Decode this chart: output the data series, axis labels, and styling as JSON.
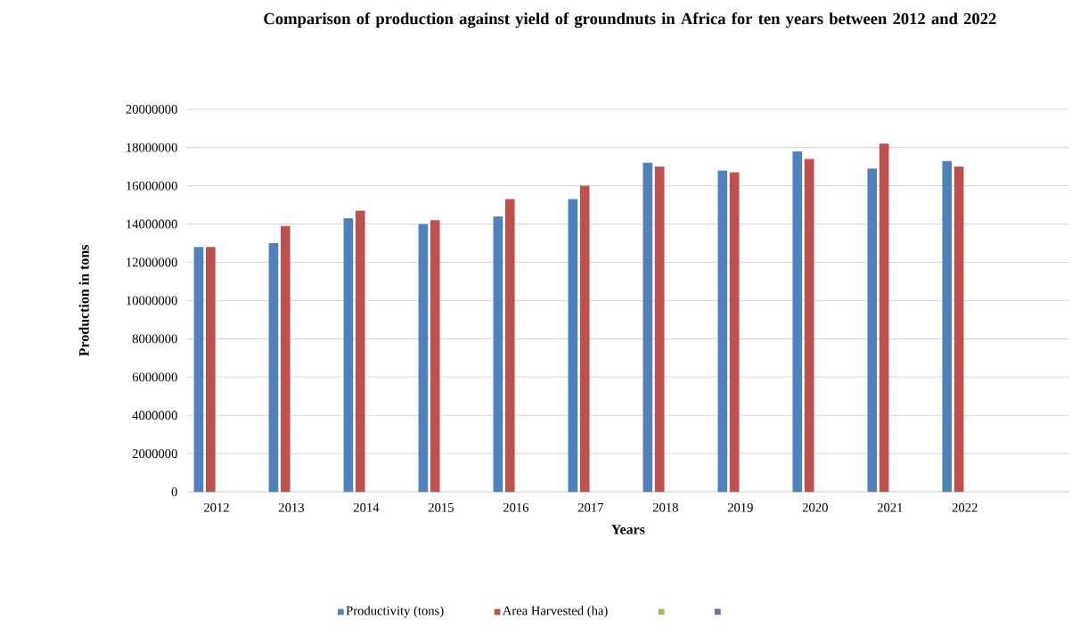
{
  "chart_data": {
    "type": "bar",
    "title": "Comparison of production against yield of groundnuts in Africa for ten years between 2012 and 2022",
    "xlabel": "Years",
    "ylabel": "Production in tons",
    "categories": [
      "2012",
      "2013",
      "2014",
      "2015",
      "2016",
      "2017",
      "2018",
      "2019",
      "2020",
      "2021",
      "2022"
    ],
    "series": [
      {
        "name": "Productivity (tons)",
        "color": "#4f81bd",
        "values": [
          12800000,
          13000000,
          14300000,
          14000000,
          14400000,
          15300000,
          17200000,
          16800000,
          17800000,
          16900000,
          17300000
        ]
      },
      {
        "name": "Area Harvested (ha)",
        "color": "#c0504d",
        "values": [
          12800000,
          13900000,
          14700000,
          14200000,
          15300000,
          16000000,
          17000000,
          16700000,
          17400000,
          18200000,
          17000000
        ]
      },
      {
        "color": "#9bbb59",
        "values": [
          null,
          null,
          null,
          null,
          null,
          null,
          null,
          null,
          null,
          null,
          null
        ]
      },
      {
        "color": "#8064a2",
        "values": [
          null,
          null,
          null,
          null,
          null,
          null,
          null,
          null,
          null,
          null,
          null
        ]
      }
    ],
    "ylim": [
      0,
      20000000
    ],
    "yticks": [
      0,
      2000000,
      4000000,
      6000000,
      8000000,
      10000000,
      12000000,
      14000000,
      16000000,
      18000000,
      20000000
    ],
    "grid": "y",
    "legend": "bottom"
  }
}
